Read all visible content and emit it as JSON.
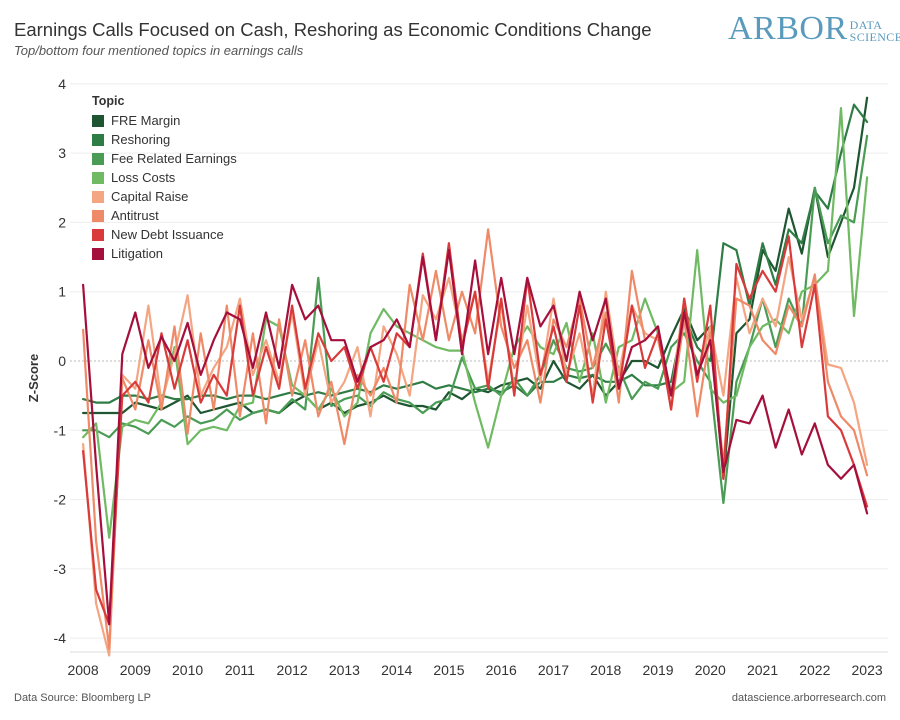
{
  "title": "Earnings Calls Focused on Cash, Reshoring as Economic Conditions Change",
  "subtitle": "Top/bottom four mentioned topics in earnings calls",
  "logo": {
    "main": "ARBOR",
    "sub1": "DATA",
    "sub2": "SCIENCE"
  },
  "footer": {
    "source": "Data Source: Bloomberg LP",
    "site": "datascience.arborresearch.com"
  },
  "chart_data": {
    "type": "line",
    "title": "Earnings Calls Focused on Cash, Reshoring as Economic Conditions Change",
    "ylabel": "Z-Score",
    "xlabel": "",
    "ylim": [
      -4.2,
      4.2
    ],
    "yticks": [
      "4",
      "3",
      "2",
      "1",
      "0",
      "-1",
      "-2",
      "-3",
      "-4"
    ],
    "xticks": [
      "2008",
      "2009",
      "2010",
      "2011",
      "2012",
      "2013",
      "2014",
      "2015",
      "2016",
      "2017",
      "2018",
      "2019",
      "2020",
      "2021",
      "2022",
      "2023"
    ],
    "xlim": [
      2007.75,
      2023.4
    ],
    "legend_title": "Topic",
    "legend_position": "top-left",
    "zero_line": "dotted",
    "series": [
      {
        "name": "FRE Margin",
        "color": "#1e5631",
        "x": [
          2008.0,
          2008.25,
          2008.5,
          2008.75,
          2009.0,
          2009.25,
          2009.5,
          2009.75,
          2010.0,
          2010.25,
          2010.5,
          2010.75,
          2011.0,
          2011.25,
          2011.5,
          2011.75,
          2012.0,
          2012.25,
          2012.5,
          2012.75,
          2013.0,
          2013.25,
          2013.5,
          2013.75,
          2014.0,
          2014.25,
          2014.5,
          2014.75,
          2015.0,
          2015.25,
          2015.5,
          2015.75,
          2016.0,
          2016.25,
          2016.5,
          2016.75,
          2017.0,
          2017.25,
          2017.5,
          2017.75,
          2018.0,
          2018.25,
          2018.5,
          2018.75,
          2019.0,
          2019.25,
          2019.5,
          2019.75,
          2020.0,
          2020.25,
          2020.5,
          2020.75,
          2021.0,
          2021.25,
          2021.5,
          2021.75,
          2022.0,
          2022.25,
          2022.5,
          2022.75,
          2023.0
        ],
        "y": [
          -0.75,
          -0.75,
          -0.75,
          -0.75,
          -0.6,
          -0.65,
          -0.7,
          -0.6,
          -0.5,
          -0.75,
          -0.7,
          -0.65,
          -0.6,
          -0.75,
          -0.7,
          -0.75,
          -0.6,
          -0.5,
          -0.7,
          -0.6,
          -0.75,
          -0.65,
          -0.6,
          -0.5,
          -0.6,
          -0.65,
          -0.65,
          -0.7,
          -0.45,
          -0.55,
          -0.4,
          -0.45,
          -0.35,
          -0.3,
          -0.25,
          -0.4,
          0.0,
          -0.3,
          -0.4,
          -0.2,
          -0.5,
          -0.3,
          0.0,
          0.0,
          -0.1,
          0.35,
          0.75,
          0.3,
          0.5,
          -1.7,
          0.4,
          0.6,
          1.6,
          1.3,
          2.2,
          1.55,
          2.5,
          1.5,
          2.0,
          2.5,
          3.8
        ]
      },
      {
        "name": "Reshoring",
        "color": "#2f7d45",
        "x": [
          2008.0,
          2008.25,
          2008.5,
          2008.75,
          2009.0,
          2009.25,
          2009.5,
          2009.75,
          2010.0,
          2010.25,
          2010.5,
          2010.75,
          2011.0,
          2011.25,
          2011.5,
          2011.75,
          2012.0,
          2012.25,
          2012.5,
          2012.75,
          2013.0,
          2013.25,
          2013.5,
          2013.75,
          2014.0,
          2014.25,
          2014.5,
          2014.75,
          2015.0,
          2015.25,
          2015.5,
          2015.75,
          2016.0,
          2016.25,
          2016.5,
          2016.75,
          2017.0,
          2017.25,
          2017.5,
          2017.75,
          2018.0,
          2018.25,
          2018.5,
          2018.75,
          2019.0,
          2019.25,
          2019.5,
          2019.75,
          2020.0,
          2020.25,
          2020.5,
          2020.75,
          2021.0,
          2021.25,
          2021.5,
          2021.75,
          2022.0,
          2022.25,
          2022.5,
          2022.75,
          2023.0
        ],
        "y": [
          -0.55,
          -0.6,
          -0.6,
          -0.5,
          -0.5,
          -0.55,
          -0.5,
          -0.55,
          -0.55,
          -0.5,
          -0.5,
          -0.55,
          -0.5,
          -0.5,
          -0.55,
          -0.5,
          -0.45,
          -0.5,
          -0.45,
          -0.5,
          -0.45,
          -0.4,
          -0.45,
          -0.35,
          -0.4,
          -0.35,
          -0.3,
          -0.4,
          -0.35,
          -0.4,
          -0.45,
          -0.4,
          -0.45,
          -0.35,
          -0.5,
          -0.3,
          -0.3,
          -0.2,
          -0.25,
          -0.2,
          -0.3,
          -0.3,
          -0.2,
          -0.35,
          -0.35,
          -0.3,
          0.65,
          0.2,
          0.0,
          1.7,
          1.6,
          0.8,
          1.7,
          1.1,
          1.9,
          1.7,
          2.45,
          2.2,
          3.0,
          3.7,
          3.45
        ]
      },
      {
        "name": "Fee Related Earnings",
        "color": "#4a9c55",
        "x": [
          2008.0,
          2008.25,
          2008.5,
          2008.75,
          2009.0,
          2009.25,
          2009.5,
          2009.75,
          2010.0,
          2010.25,
          2010.5,
          2010.75,
          2011.0,
          2011.25,
          2011.5,
          2011.75,
          2012.0,
          2012.25,
          2012.5,
          2012.75,
          2013.0,
          2013.25,
          2013.5,
          2013.75,
          2014.0,
          2014.25,
          2014.5,
          2014.75,
          2015.0,
          2015.25,
          2015.5,
          2015.75,
          2016.0,
          2016.25,
          2016.5,
          2016.75,
          2017.0,
          2017.25,
          2017.5,
          2017.75,
          2018.0,
          2018.25,
          2018.5,
          2018.75,
          2019.0,
          2019.25,
          2019.5,
          2019.75,
          2020.0,
          2020.25,
          2020.5,
          2020.75,
          2021.0,
          2021.25,
          2021.5,
          2021.75,
          2022.0,
          2022.25,
          2022.5,
          2022.75,
          2023.0
        ],
        "y": [
          -1.0,
          -1.0,
          -1.1,
          -0.9,
          -0.95,
          -1.05,
          -0.85,
          -0.95,
          -0.8,
          -0.9,
          -0.85,
          -0.7,
          -0.85,
          -0.75,
          -0.7,
          -0.75,
          -0.55,
          -0.7,
          1.2,
          -0.65,
          -0.55,
          -0.5,
          -0.65,
          -0.45,
          -0.55,
          -0.6,
          -0.75,
          -0.6,
          -0.55,
          0.05,
          -0.4,
          -0.35,
          -0.5,
          -0.25,
          -0.5,
          -0.2,
          0.3,
          -0.1,
          -0.15,
          -0.1,
          0.25,
          -0.1,
          -0.55,
          -0.3,
          -0.4,
          0.2,
          0.4,
          0.0,
          -0.3,
          -2.05,
          -0.3,
          0.2,
          0.9,
          0.2,
          0.9,
          0.5,
          2.5,
          1.7,
          2.1,
          2.0,
          3.25
        ]
      },
      {
        "name": "Loss Costs",
        "color": "#6fba63",
        "x": [
          2008.0,
          2008.25,
          2008.5,
          2008.75,
          2009.0,
          2009.25,
          2009.5,
          2009.75,
          2010.0,
          2010.25,
          2010.5,
          2010.75,
          2011.0,
          2011.25,
          2011.5,
          2011.75,
          2012.0,
          2012.25,
          2012.5,
          2012.75,
          2013.0,
          2013.25,
          2013.5,
          2013.75,
          2014.0,
          2014.25,
          2014.5,
          2014.75,
          2015.0,
          2015.25,
          2015.5,
          2015.75,
          2016.0,
          2016.25,
          2016.5,
          2016.75,
          2017.0,
          2017.25,
          2017.5,
          2017.75,
          2018.0,
          2018.25,
          2018.5,
          2018.75,
          2019.0,
          2019.25,
          2019.5,
          2019.75,
          2020.0,
          2020.25,
          2020.5,
          2020.75,
          2021.0,
          2021.25,
          2021.5,
          2021.75,
          2022.0,
          2022.25,
          2022.5,
          2022.75,
          2023.0
        ],
        "y": [
          -1.1,
          -0.9,
          -2.55,
          -0.95,
          -0.85,
          -0.9,
          -0.6,
          0.2,
          -1.2,
          -1.0,
          -0.95,
          -1.0,
          -0.65,
          -0.6,
          0.6,
          0.5,
          -0.35,
          -0.5,
          -0.7,
          -0.4,
          -0.8,
          -0.6,
          0.4,
          0.75,
          0.5,
          0.4,
          0.3,
          0.2,
          0.15,
          0.15,
          -0.6,
          -1.25,
          -0.5,
          0.2,
          0.5,
          0.2,
          0.1,
          0.55,
          -0.3,
          0.4,
          -0.6,
          0.2,
          0.3,
          0.9,
          0.4,
          -0.45,
          -0.3,
          1.6,
          -0.4,
          -0.6,
          -0.5,
          0.2,
          0.5,
          0.6,
          0.4,
          1.0,
          1.1,
          1.3,
          3.65,
          0.65,
          2.65
        ]
      },
      {
        "name": "Capital Raise",
        "color": "#f4a582",
        "x": [
          2008.0,
          2008.25,
          2008.5,
          2008.75,
          2009.0,
          2009.25,
          2009.5,
          2009.75,
          2010.0,
          2010.25,
          2010.5,
          2010.75,
          2011.0,
          2011.25,
          2011.5,
          2011.75,
          2012.0,
          2012.25,
          2012.5,
          2012.75,
          2013.0,
          2013.25,
          2013.5,
          2013.75,
          2014.0,
          2014.25,
          2014.5,
          2014.75,
          2015.0,
          2015.25,
          2015.5,
          2015.75,
          2016.0,
          2016.25,
          2016.5,
          2016.75,
          2017.0,
          2017.25,
          2017.5,
          2017.75,
          2018.0,
          2018.25,
          2018.5,
          2018.75,
          2019.0,
          2019.25,
          2019.5,
          2019.75,
          2020.0,
          2020.25,
          2020.5,
          2020.75,
          2021.0,
          2021.25,
          2021.5,
          2021.75,
          2022.0,
          2022.25,
          2022.5,
          2022.75,
          2023.0
        ],
        "y": [
          -1.2,
          -3.5,
          -4.25,
          -0.2,
          -0.4,
          0.8,
          -0.6,
          0.1,
          0.95,
          -0.5,
          -0.1,
          0.2,
          0.9,
          -0.2,
          0.3,
          -0.3,
          0.7,
          -0.5,
          0.3,
          -0.6,
          -0.3,
          0.2,
          -0.8,
          0.5,
          0.1,
          -0.5,
          0.95,
          0.6,
          1.2,
          0.3,
          1.0,
          -0.3,
          0.8,
          -0.4,
          0.8,
          -0.3,
          0.9,
          -0.2,
          0.4,
          -0.5,
          1.0,
          -0.2,
          0.8,
          0.4,
          0.3,
          -0.5,
          0.9,
          -0.2,
          0.5,
          -0.5,
          1.2,
          0.4,
          0.9,
          0.5,
          1.5,
          0.6,
          1.2,
          -0.05,
          -0.1,
          -0.6,
          -1.5
        ]
      },
      {
        "name": "Antitrust",
        "color": "#ef8a68",
        "x": [
          2008.0,
          2008.25,
          2008.5,
          2008.75,
          2009.0,
          2009.25,
          2009.5,
          2009.75,
          2010.0,
          2010.25,
          2010.5,
          2010.75,
          2011.0,
          2011.25,
          2011.5,
          2011.75,
          2012.0,
          2012.25,
          2012.5,
          2012.75,
          2013.0,
          2013.25,
          2013.5,
          2013.75,
          2014.0,
          2014.25,
          2014.5,
          2014.75,
          2015.0,
          2015.25,
          2015.5,
          2015.75,
          2016.0,
          2016.25,
          2016.5,
          2016.75,
          2017.0,
          2017.25,
          2017.5,
          2017.75,
          2018.0,
          2018.25,
          2018.5,
          2018.75,
          2019.0,
          2019.25,
          2019.5,
          2019.75,
          2020.0,
          2020.25,
          2020.5,
          2020.75,
          2021.0,
          2021.25,
          2021.5,
          2021.75,
          2022.0,
          2022.25,
          2022.5,
          2022.75,
          2023.0
        ],
        "y": [
          0.45,
          -2.6,
          -4.15,
          -0.25,
          -0.7,
          0.3,
          -0.7,
          0.5,
          -1.05,
          0.4,
          -0.7,
          0.8,
          -0.8,
          0.4,
          -0.9,
          0.6,
          -0.5,
          0.3,
          -0.8,
          -0.3,
          -1.2,
          -0.2,
          -0.5,
          -0.1,
          -0.6,
          1.1,
          0.3,
          1.3,
          0.3,
          1.0,
          0.4,
          1.9,
          0.5,
          -0.1,
          0.3,
          -0.6,
          0.6,
          0.2,
          0.9,
          -0.1,
          0.7,
          -0.6,
          1.3,
          0.3,
          0.5,
          -0.7,
          0.6,
          -0.8,
          0.4,
          -1.5,
          0.9,
          0.8,
          0.3,
          0.1,
          0.8,
          0.5,
          1.25,
          -0.3,
          -0.8,
          -1.0,
          -1.65
        ]
      },
      {
        "name": "New Debt Issuance",
        "color": "#d93b3b",
        "x": [
          2008.0,
          2008.25,
          2008.5,
          2008.75,
          2009.0,
          2009.25,
          2009.5,
          2009.75,
          2010.0,
          2010.25,
          2010.5,
          2010.75,
          2011.0,
          2011.25,
          2011.5,
          2011.75,
          2012.0,
          2012.25,
          2012.5,
          2012.75,
          2013.0,
          2013.25,
          2013.5,
          2013.75,
          2014.0,
          2014.25,
          2014.5,
          2014.75,
          2015.0,
          2015.25,
          2015.5,
          2015.75,
          2016.0,
          2016.25,
          2016.5,
          2016.75,
          2017.0,
          2017.25,
          2017.5,
          2017.75,
          2018.0,
          2018.25,
          2018.5,
          2018.75,
          2019.0,
          2019.25,
          2019.5,
          2019.75,
          2020.0,
          2020.25,
          2020.5,
          2020.75,
          2021.0,
          2021.25,
          2021.5,
          2021.75,
          2022.0,
          2022.25,
          2022.5,
          2022.75,
          2023.0
        ],
        "y": [
          -1.3,
          -3.3,
          -3.8,
          -0.5,
          -0.3,
          -0.6,
          0.4,
          -0.4,
          0.3,
          -0.6,
          -0.2,
          -0.5,
          0.8,
          -0.5,
          0.2,
          -0.4,
          0.8,
          -0.4,
          0.4,
          0.0,
          0.2,
          -0.4,
          0.2,
          -0.3,
          0.4,
          0.2,
          1.55,
          0.3,
          1.7,
          0.2,
          1.0,
          -0.4,
          0.9,
          -0.5,
          1.2,
          -0.2,
          0.5,
          -0.3,
          0.8,
          -0.6,
          0.6,
          -0.4,
          0.8,
          -0.1,
          0.4,
          -0.7,
          0.9,
          -0.3,
          0.8,
          -1.7,
          1.4,
          0.9,
          1.3,
          1.0,
          1.8,
          0.2,
          1.1,
          -0.8,
          -1.0,
          -1.5,
          -2.1
        ]
      },
      {
        "name": "Litigation",
        "color": "#a50f3c",
        "x": [
          2008.0,
          2008.25,
          2008.5,
          2008.75,
          2009.0,
          2009.25,
          2009.5,
          2009.75,
          2010.0,
          2010.25,
          2010.5,
          2010.75,
          2011.0,
          2011.25,
          2011.5,
          2011.75,
          2012.0,
          2012.25,
          2012.5,
          2012.75,
          2013.0,
          2013.25,
          2013.5,
          2013.75,
          2014.0,
          2014.25,
          2014.5,
          2014.75,
          2015.0,
          2015.25,
          2015.5,
          2015.75,
          2016.0,
          2016.25,
          2016.5,
          2016.75,
          2017.0,
          2017.25,
          2017.5,
          2017.75,
          2018.0,
          2018.25,
          2018.5,
          2018.75,
          2019.0,
          2019.25,
          2019.5,
          2019.75,
          2020.0,
          2020.25,
          2020.5,
          2020.75,
          2021.0,
          2021.25,
          2021.5,
          2021.75,
          2022.0,
          2022.25,
          2022.5,
          2022.75,
          2023.0
        ],
        "y": [
          1.1,
          -1.5,
          -3.8,
          0.1,
          0.7,
          -0.1,
          0.35,
          0.0,
          0.55,
          -0.2,
          0.3,
          0.7,
          0.6,
          -0.1,
          0.7,
          -0.1,
          1.1,
          0.6,
          0.8,
          0.3,
          0.3,
          -0.3,
          0.2,
          0.3,
          0.6,
          0.2,
          1.5,
          0.3,
          1.6,
          0.1,
          1.45,
          0.1,
          1.2,
          0.1,
          1.2,
          0.5,
          0.8,
          0.0,
          1.0,
          0.3,
          0.9,
          -0.4,
          0.2,
          0.3,
          0.5,
          -0.5,
          0.7,
          -0.2,
          0.3,
          -1.6,
          -0.85,
          -0.9,
          -0.5,
          -1.25,
          -0.7,
          -1.35,
          -0.9,
          -1.5,
          -1.7,
          -1.5,
          -2.2
        ]
      }
    ]
  }
}
